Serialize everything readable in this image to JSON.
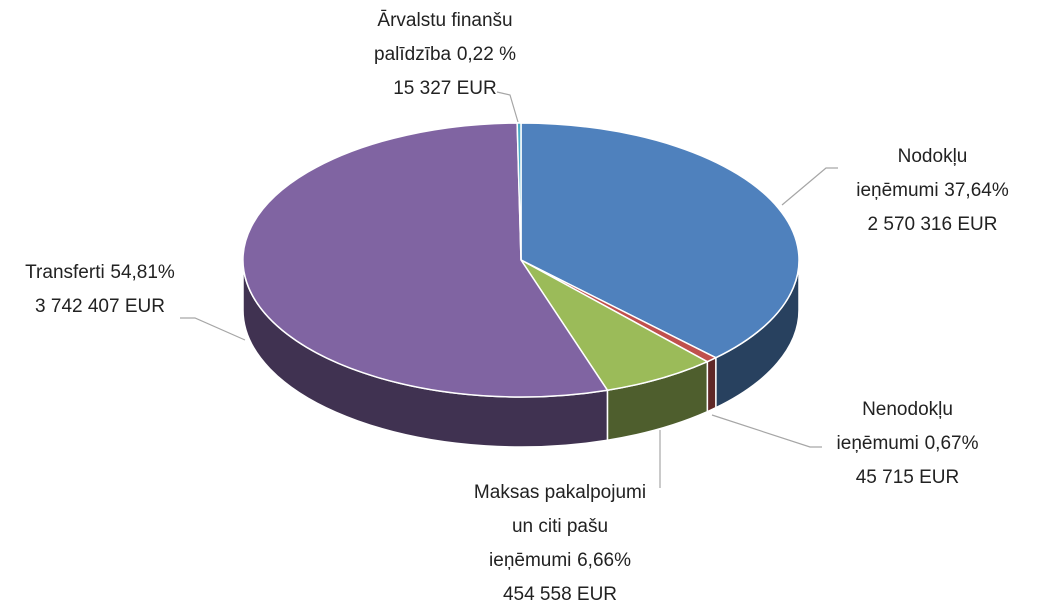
{
  "chart_data": {
    "type": "pie",
    "categories": [
      "Nodokļu ieņēmumi",
      "Nenodokļu ieņēmumi",
      "Maksas pakalpojumi un citi pašu ieņēmumi",
      "Transferti",
      "Ārvalstu finanšu palīdzība"
    ],
    "values": [
      37.64,
      0.67,
      6.66,
      54.81,
      0.22
    ],
    "value_labels": [
      "37,64%",
      "0,67%",
      "6,66%",
      "54,81%",
      "0,22 %"
    ],
    "amount_labels": [
      "2 570 316 EUR",
      "45 715 EUR",
      "454 558 EUR",
      "3 742 407 EUR",
      "15 327 EUR"
    ],
    "colors": [
      "#4f81bd",
      "#c0504d",
      "#9bbb59",
      "#8064a2",
      "#4bacc6"
    ]
  }
}
